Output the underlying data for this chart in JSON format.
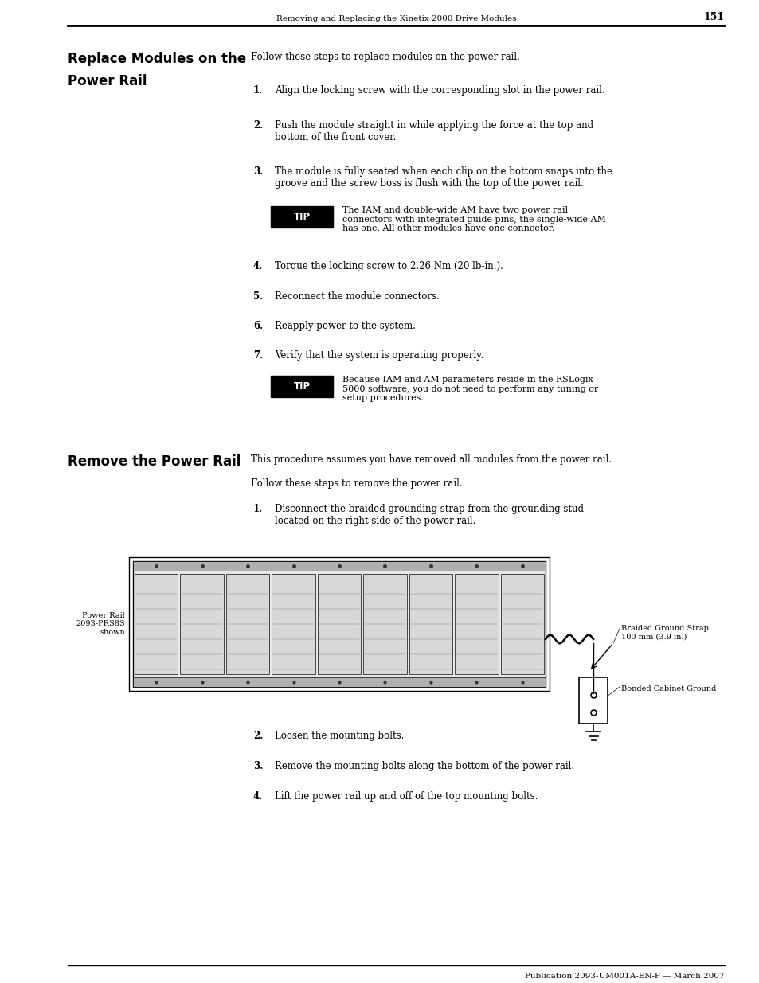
{
  "page_bg": "#ffffff",
  "header_text": "Removing and Replacing the Kinetix 2000 Drive Modules",
  "page_number": "151",
  "section1_title_line1": "Replace Modules on the",
  "section1_title_line2": "Power Rail",
  "section1_intro": "Follow these steps to replace modules on the power rail.",
  "section1_steps": [
    "Align the locking screw with the corresponding slot in the power rail.",
    "Push the module straight in while applying the force at the top and\nbottom of the front cover.",
    "The module is fully seated when each clip on the bottom snaps into the\ngroove and the screw boss is flush with the top of the power rail.",
    "Torque the locking screw to 2.26 Nm (20 lb-in.).",
    "Reconnect the module connectors.",
    "Reapply power to the system.",
    "Verify that the system is operating properly."
  ],
  "tip1_text": "The IAM and double-wide AM have two power rail\nconnectors with integrated guide pins, the single-wide AM\nhas one. All other modules have one connector.",
  "tip2_text": "Because IAM and AM parameters reside in the RSLogix\n5000 software, you do not need to perform any tuning or\nsetup procedures.",
  "section2_title": "Remove the Power Rail",
  "section2_intro1": "This procedure assumes you have removed all modules from the power rail.",
  "section2_intro2": "Follow these steps to remove the power rail.",
  "section2_steps": [
    "Disconnect the braided grounding strap from the grounding stud\nlocated on the right side of the power rail.",
    "Loosen the mounting bolts.",
    "Remove the mounting bolts along the bottom of the power rail.",
    "Lift the power rail up and off of the top mounting bolts."
  ],
  "power_rail_label": "Power Rail\n2093-PRS8S\nshown",
  "braided_label": "Braided Ground Strap\n100 mm (3.9 in.)",
  "bonded_label": "Bonded Cabinet Ground",
  "footer_text": "Publication 2093-UM001A-EN-P — March 2007"
}
